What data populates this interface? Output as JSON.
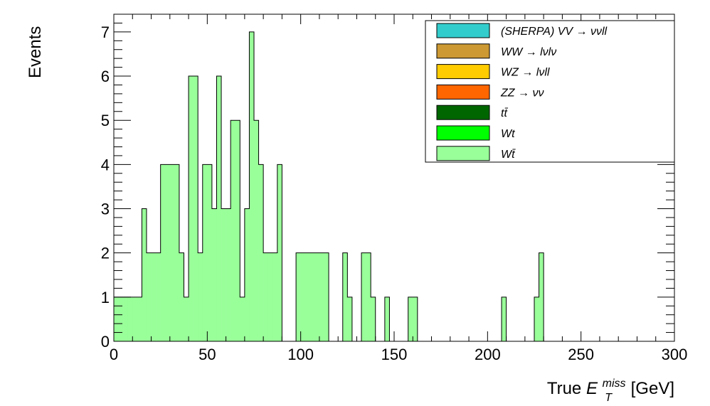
{
  "chart_data": {
    "type": "histogram",
    "ylabel": "Events",
    "xlabel": {
      "prefix": "True ",
      "symbol": "E",
      "superscript": "miss",
      "subscript": "T",
      "suffix": " [GeV]"
    },
    "xlim": [
      0,
      300
    ],
    "ylim": [
      0,
      7.4
    ],
    "bin_width": 2.5,
    "fill_color": "#99ff99",
    "xticks": [
      "0",
      "50",
      "100",
      "150",
      "200",
      "250",
      "300"
    ],
    "yticks": [
      "0",
      "1",
      "2",
      "3",
      "4",
      "5",
      "6",
      "7"
    ],
    "bins": [
      {
        "x": 0,
        "y": 1
      },
      {
        "x": 2.5,
        "y": 1
      },
      {
        "x": 5,
        "y": 1
      },
      {
        "x": 7.5,
        "y": 1
      },
      {
        "x": 10,
        "y": 1
      },
      {
        "x": 12.5,
        "y": 1
      },
      {
        "x": 15,
        "y": 3
      },
      {
        "x": 17.5,
        "y": 2
      },
      {
        "x": 20,
        "y": 2
      },
      {
        "x": 22.5,
        "y": 2
      },
      {
        "x": 25,
        "y": 4
      },
      {
        "x": 27.5,
        "y": 4
      },
      {
        "x": 30,
        "y": 4
      },
      {
        "x": 32.5,
        "y": 4
      },
      {
        "x": 35,
        "y": 2
      },
      {
        "x": 37.5,
        "y": 1
      },
      {
        "x": 40,
        "y": 6
      },
      {
        "x": 42.5,
        "y": 6
      },
      {
        "x": 45,
        "y": 2
      },
      {
        "x": 47.5,
        "y": 4
      },
      {
        "x": 50,
        "y": 4
      },
      {
        "x": 52.5,
        "y": 3
      },
      {
        "x": 55,
        "y": 6
      },
      {
        "x": 57.5,
        "y": 3
      },
      {
        "x": 60,
        "y": 3
      },
      {
        "x": 62.5,
        "y": 5
      },
      {
        "x": 65,
        "y": 5
      },
      {
        "x": 67.5,
        "y": 1
      },
      {
        "x": 70,
        "y": 3
      },
      {
        "x": 72.5,
        "y": 7
      },
      {
        "x": 75,
        "y": 5
      },
      {
        "x": 77.5,
        "y": 4
      },
      {
        "x": 80,
        "y": 2
      },
      {
        "x": 82.5,
        "y": 2
      },
      {
        "x": 85,
        "y": 2
      },
      {
        "x": 87.5,
        "y": 4
      },
      {
        "x": 90,
        "y": 0
      },
      {
        "x": 92.5,
        "y": 0
      },
      {
        "x": 95,
        "y": 0
      },
      {
        "x": 97.5,
        "y": 2
      },
      {
        "x": 100,
        "y": 2
      },
      {
        "x": 102.5,
        "y": 2
      },
      {
        "x": 105,
        "y": 2
      },
      {
        "x": 107.5,
        "y": 2
      },
      {
        "x": 110,
        "y": 2
      },
      {
        "x": 112.5,
        "y": 2
      },
      {
        "x": 115,
        "y": 0
      },
      {
        "x": 117.5,
        "y": 0
      },
      {
        "x": 120,
        "y": 0
      },
      {
        "x": 122.5,
        "y": 2
      },
      {
        "x": 125,
        "y": 1
      },
      {
        "x": 127.5,
        "y": 0
      },
      {
        "x": 130,
        "y": 0
      },
      {
        "x": 132.5,
        "y": 2
      },
      {
        "x": 135,
        "y": 2
      },
      {
        "x": 137.5,
        "y": 1
      },
      {
        "x": 140,
        "y": 0
      },
      {
        "x": 142.5,
        "y": 0
      },
      {
        "x": 145,
        "y": 1
      },
      {
        "x": 147.5,
        "y": 0
      },
      {
        "x": 150,
        "y": 0
      },
      {
        "x": 152.5,
        "y": 0
      },
      {
        "x": 155,
        "y": 0
      },
      {
        "x": 157.5,
        "y": 1
      },
      {
        "x": 160,
        "y": 1
      },
      {
        "x": 162.5,
        "y": 0
      },
      {
        "x": 177.5,
        "y": 0
      },
      {
        "x": 180,
        "y": 0
      },
      {
        "x": 207.5,
        "y": 1
      },
      {
        "x": 225,
        "y": 1
      },
      {
        "x": 227.5,
        "y": 2
      }
    ],
    "legend": {
      "position": "top-right",
      "entries": [
        {
          "label": "(SHERPA) VV → ννll",
          "color": "#33cccc"
        },
        {
          "label": "WW → lνlν",
          "color": "#cc9933"
        },
        {
          "label": "WZ → lνll",
          "color": "#ffcc00"
        },
        {
          "label": "ZZ → νν",
          "color": "#ff6600"
        },
        {
          "label": "tt̄",
          "color": "#006600"
        },
        {
          "label": "Wt",
          "color": "#00ff00"
        },
        {
          "label": "Wt̄",
          "color": "#99ff99"
        }
      ]
    }
  }
}
